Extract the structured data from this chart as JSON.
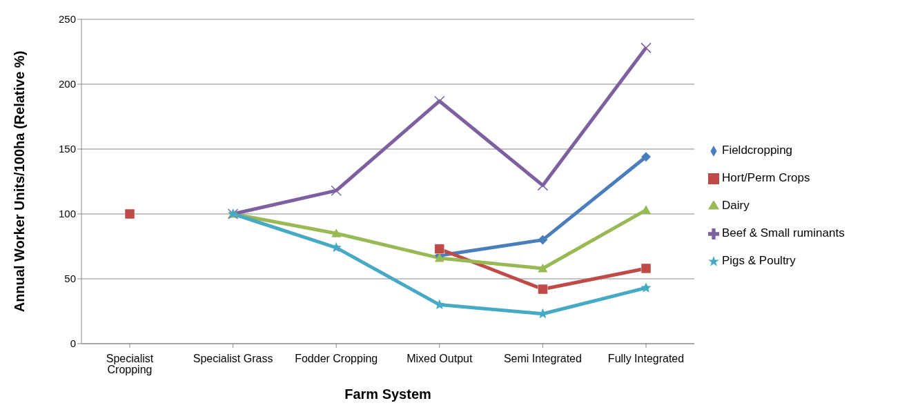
{
  "chart_data": {
    "type": "line",
    "xlabel": "Farm System",
    "ylabel": "Annual Worker Units/100ha (Relative %)",
    "categories": [
      "Specialist Cropping",
      "Specialist Grass",
      "Fodder Cropping",
      "Mixed Output",
      "Semi Integrated",
      "Fully Integrated"
    ],
    "series": [
      {
        "name": "Fieldcropping",
        "color": "#4a7ebb",
        "marker": "diamond",
        "values": [
          null,
          null,
          null,
          68,
          80,
          144
        ]
      },
      {
        "name": "Hort/Perm Crops",
        "color": "#be4b48",
        "marker": "square",
        "values": [
          100,
          null,
          null,
          73,
          42,
          58
        ]
      },
      {
        "name": "Dairy",
        "color": "#98b954",
        "marker": "triangle",
        "values": [
          null,
          100,
          85,
          66,
          58,
          103
        ]
      },
      {
        "name": "Beef & Small ruminants",
        "color": "#7d60a0",
        "marker": "cross",
        "values": [
          null,
          100,
          118,
          187,
          122,
          228
        ]
      },
      {
        "name": "Pigs & Poultry",
        "color": "#46aac5",
        "marker": "star",
        "values": [
          null,
          100,
          74,
          30,
          23,
          43
        ]
      }
    ],
    "ylim": [
      0,
      250
    ],
    "yticks": [
      0,
      50,
      100,
      150,
      200,
      250
    ],
    "grid": "y",
    "legend": "right",
    "line_style": "solid"
  }
}
